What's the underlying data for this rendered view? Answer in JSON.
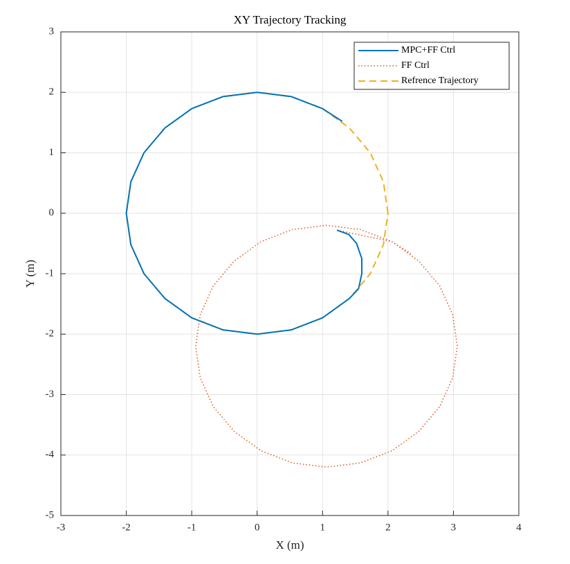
{
  "chart_data": {
    "type": "line",
    "title": "XY Trajectory Tracking",
    "x_label": "X (m)",
    "y_label": "Y (m)",
    "xlim": [
      -3,
      4
    ],
    "ylim": [
      -5,
      3
    ],
    "xticks": [
      -3,
      -2,
      -1,
      0,
      1,
      2,
      3,
      4
    ],
    "yticks": [
      -5,
      -4,
      -3,
      -2,
      -1,
      0,
      1,
      2,
      3
    ],
    "grid": true,
    "legend_position": "upper right",
    "series": [
      {
        "name": "MPC+FF Ctrl",
        "color": "#0072BD",
        "style": "solid",
        "x": [
          1.22,
          1.4,
          1.52,
          1.6,
          1.6,
          1.55,
          1.41,
          1.0,
          0.52,
          0,
          -0.52,
          -1,
          -1.41,
          -1.73,
          -1.93,
          -2,
          -1.93,
          -1.73,
          -1.41,
          -1,
          -0.52,
          0,
          0.52,
          1,
          1.3
        ],
        "y": [
          -0.28,
          -0.35,
          -0.5,
          -0.75,
          -1.0,
          -1.25,
          -1.41,
          -1.73,
          -1.93,
          -2,
          -1.93,
          -1.73,
          -1.41,
          -1,
          -0.52,
          0,
          0.52,
          1,
          1.41,
          1.73,
          1.93,
          2,
          1.93,
          1.73,
          1.52
        ]
      },
      {
        "name": "FF Ctrl",
        "color": "#D95319",
        "style": "dotted",
        "x": [
          1.22,
          2.06,
          2.47,
          2.79,
          2.99,
          3.06,
          2.99,
          2.79,
          2.47,
          2.06,
          1.58,
          1.06,
          0.54,
          0.06,
          -0.35,
          -0.67,
          -0.87,
          -0.94,
          -0.87,
          -0.67,
          -0.35,
          0.06,
          0.54,
          1.06,
          1.58,
          2.06,
          2.35
        ],
        "y": [
          -0.28,
          -0.47,
          -0.79,
          -1.2,
          -1.68,
          -2.2,
          -2.72,
          -3.2,
          -3.61,
          -3.93,
          -4.13,
          -4.2,
          -4.13,
          -3.93,
          -3.61,
          -3.2,
          -2.72,
          -2.2,
          -1.68,
          -1.2,
          -0.79,
          -0.47,
          -0.27,
          -0.2,
          -0.27,
          -0.47,
          -0.67
        ]
      },
      {
        "name": "Refrence Trajectory",
        "color": "#EDB120",
        "style": "dashed",
        "x": [
          2,
          1.93,
          1.73,
          1.41,
          1,
          0.52,
          0,
          -0.52,
          -1,
          -1.41,
          -1.73,
          -1.93,
          -2,
          -1.93,
          -1.73,
          -1.41,
          -1,
          -0.52,
          0,
          0.52,
          1,
          1.41,
          1.73,
          1.93,
          2
        ],
        "y": [
          0,
          0.52,
          1,
          1.41,
          1.73,
          1.93,
          2,
          1.93,
          1.73,
          1.41,
          1,
          0.52,
          0,
          -0.52,
          -1,
          -1.41,
          -1.73,
          -1.93,
          -2,
          -1.93,
          -1.73,
          -1.41,
          -1,
          -0.52,
          0
        ]
      }
    ]
  }
}
